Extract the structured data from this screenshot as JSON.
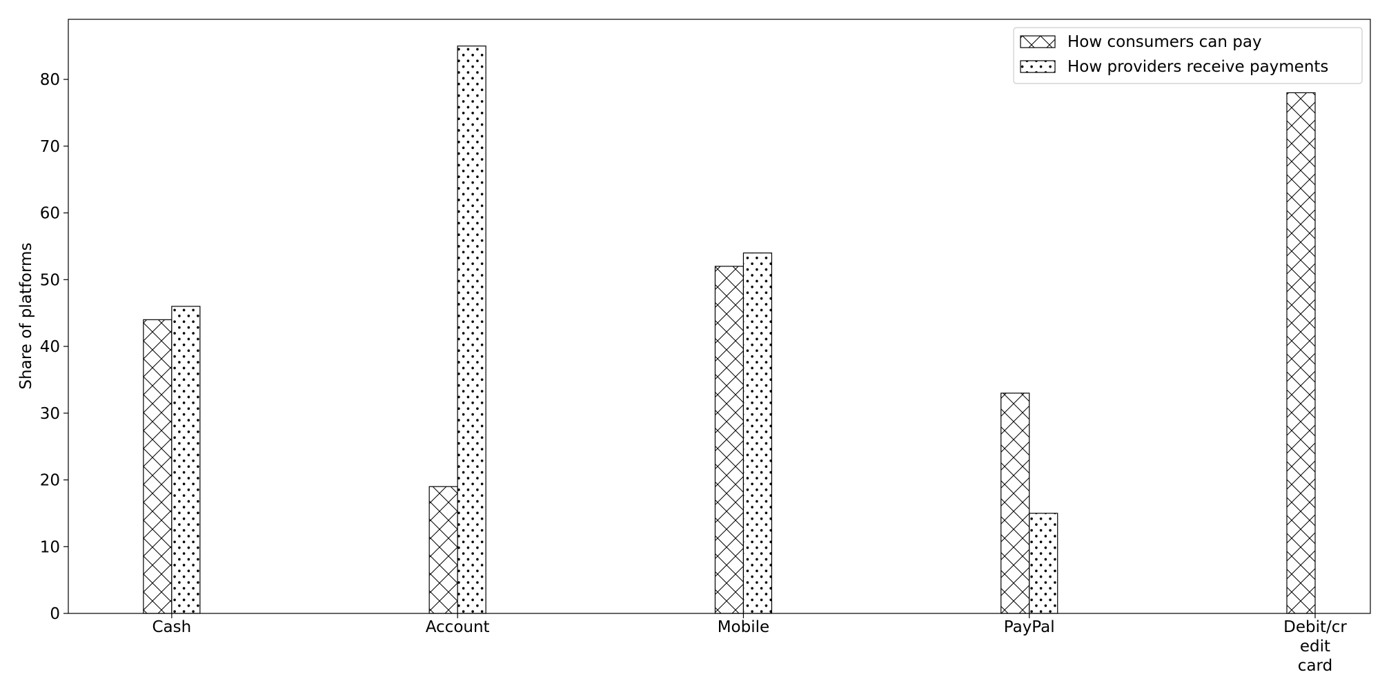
{
  "chart_data": {
    "type": "bar",
    "title": "",
    "xlabel": "",
    "ylabel": "Share of platforms",
    "ylim": [
      0,
      89
    ],
    "yticks": [
      0,
      10,
      20,
      30,
      40,
      50,
      60,
      70,
      80
    ],
    "categories": [
      [
        "Cash"
      ],
      [
        "Account"
      ],
      [
        "Mobile"
      ],
      [
        "PayPal"
      ],
      [
        "Debit/cr",
        "edit",
        "card"
      ]
    ],
    "series": [
      {
        "name": "How consumers can pay",
        "pattern": "crosshatch",
        "values": [
          44,
          19,
          52,
          33,
          78
        ]
      },
      {
        "name": "How providers receive payments",
        "pattern": "dots",
        "values": [
          46,
          85,
          54,
          15,
          0
        ]
      }
    ],
    "grid": false,
    "legend": "top-right",
    "colors": {
      "bar_fill": "#ffffff",
      "bar_edge": "#000000",
      "hatch": "#000000"
    }
  }
}
